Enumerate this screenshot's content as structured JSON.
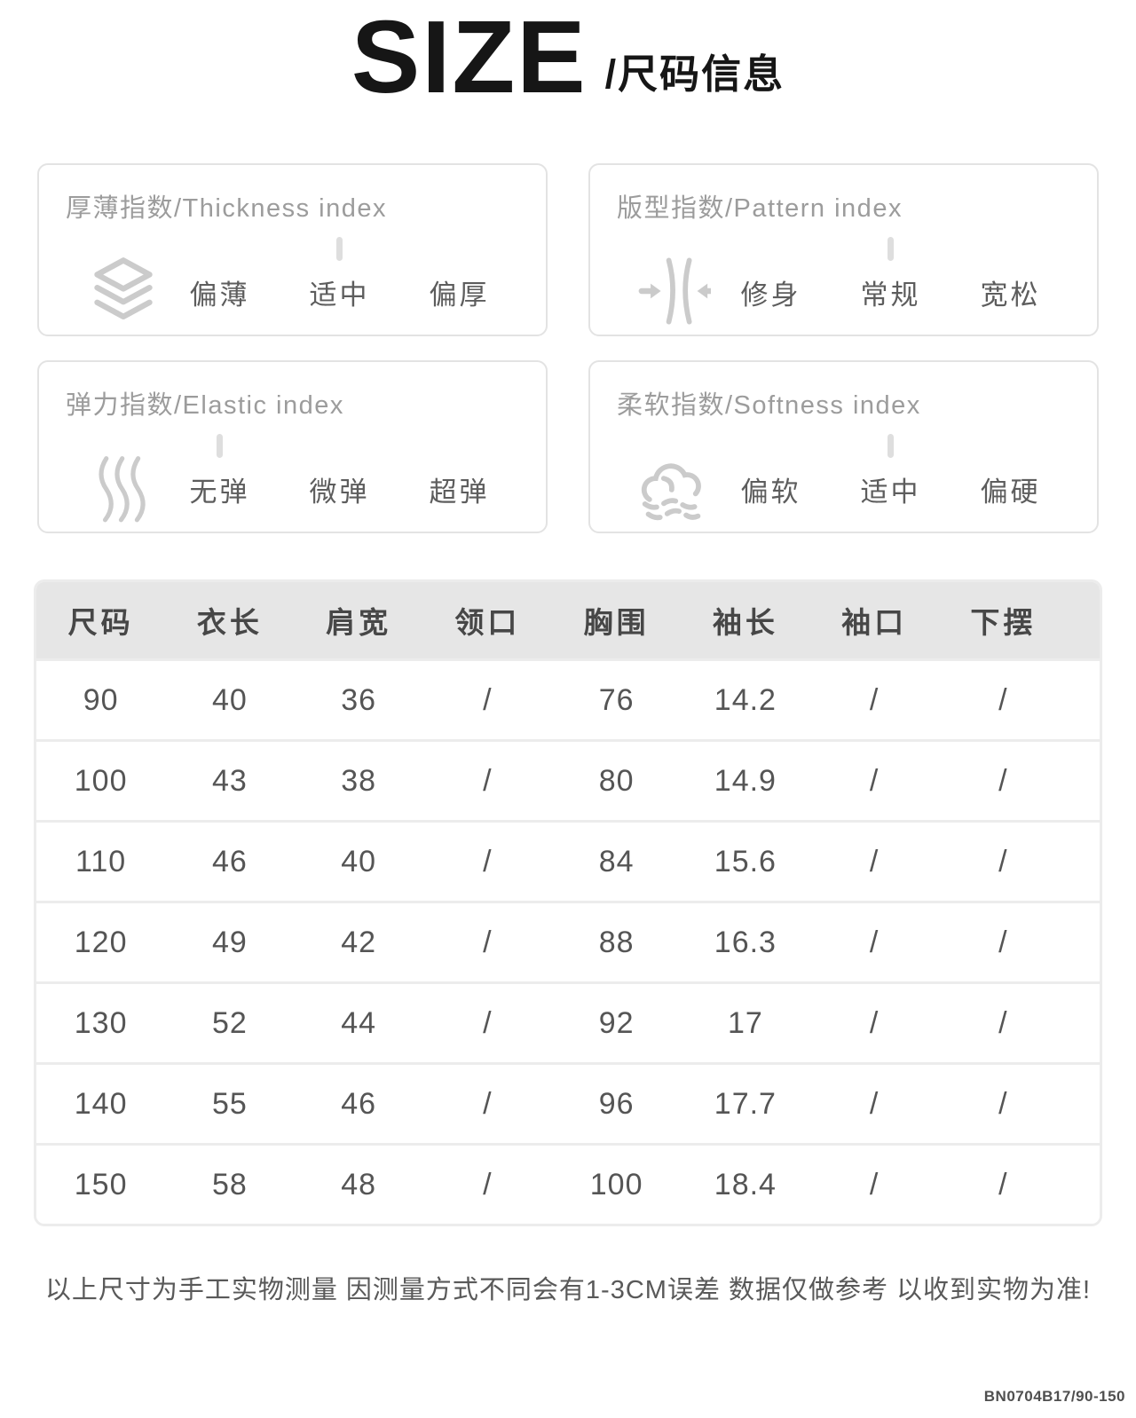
{
  "header": {
    "title_en": "SIZE",
    "title_zh": "/尺码信息"
  },
  "index_cards": [
    {
      "title": "厚薄指数/Thickness index",
      "icon": "layers-icon",
      "options": [
        "偏薄",
        "适中",
        "偏厚"
      ],
      "active_index": 1
    },
    {
      "title": "版型指数/Pattern index",
      "icon": "compress-icon",
      "options": [
        "修身",
        "常规",
        "宽松"
      ],
      "active_index": 1
    },
    {
      "title": "弹力指数/Elastic index",
      "icon": "waves-icon",
      "options": [
        "无弹",
        "微弹",
        "超弹"
      ],
      "active_index": 0
    },
    {
      "title": "柔软指数/Softness index",
      "icon": "cloud-icon",
      "options": [
        "偏软",
        "适中",
        "偏硬"
      ],
      "active_index": 1
    }
  ],
  "size_table": {
    "columns": [
      "尺码",
      "衣长",
      "肩宽",
      "领口",
      "胸围",
      "袖长",
      "袖口",
      "下摆"
    ],
    "rows": [
      [
        "90",
        "40",
        "36",
        "/",
        "76",
        "14.2",
        "/",
        "/"
      ],
      [
        "100",
        "43",
        "38",
        "/",
        "80",
        "14.9",
        "/",
        "/"
      ],
      [
        "110",
        "46",
        "40",
        "/",
        "84",
        "15.6",
        "/",
        "/"
      ],
      [
        "120",
        "49",
        "42",
        "/",
        "88",
        "16.3",
        "/",
        "/"
      ],
      [
        "130",
        "52",
        "44",
        "/",
        "92",
        "17",
        "/",
        "/"
      ],
      [
        "140",
        "55",
        "46",
        "/",
        "96",
        "17.7",
        "/",
        "/"
      ],
      [
        "150",
        "58",
        "48",
        "/",
        "100",
        "18.4",
        "/",
        "/"
      ]
    ]
  },
  "footer": {
    "note": "以上尺寸为手工实物测量 因测量方式不同会有1-3CM误差 数据仅做参考 以收到实物为准!",
    "product_code": "BN0704B17/90-150"
  },
  "colors": {
    "title_text": "#161616",
    "card_border": "#e3e3e3",
    "card_title_text": "#9c9c9c",
    "option_text": "#5d5d5d",
    "icon_stroke": "#cbcbcb",
    "active_tick": "#dedede",
    "table_border": "#ececec",
    "table_header_bg": "#e6e6e6",
    "table_header_text": "#474747",
    "table_cell_text": "#555555",
    "note_text": "#595959"
  }
}
